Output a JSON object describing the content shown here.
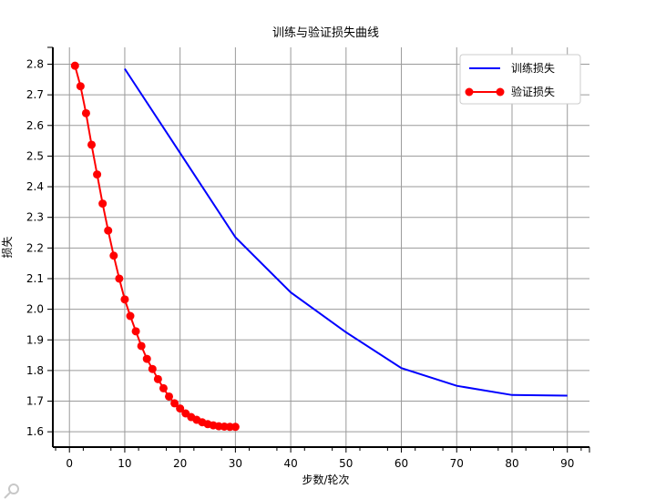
{
  "chart_data": {
    "type": "line",
    "title": "训练与验证损失曲线",
    "xlabel": "步数/轮次",
    "ylabel": "损失",
    "xlim": [
      -3,
      94
    ],
    "ylim": [
      1.55,
      2.855
    ],
    "xticks": [
      0,
      10,
      20,
      30,
      40,
      50,
      60,
      70,
      80,
      90
    ],
    "yticks": [
      1.6,
      1.7,
      1.8,
      1.9,
      2.0,
      2.1,
      2.2,
      2.3,
      2.4,
      2.5,
      2.6,
      2.7,
      2.8
    ],
    "grid": true,
    "legend_position": "top-right",
    "series": [
      {
        "name": "训练损失",
        "color": "#0000ff",
        "marker": "none",
        "x": [
          10,
          20,
          30,
          40,
          50,
          60,
          70,
          80,
          90
        ],
        "y": [
          2.785,
          2.51,
          2.235,
          2.055,
          1.925,
          1.808,
          1.75,
          1.72,
          1.718
        ]
      },
      {
        "name": "验证损失",
        "color": "#ff0000",
        "marker": "circle",
        "x": [
          1,
          2,
          3,
          4,
          5,
          6,
          7,
          8,
          9,
          10,
          11,
          12,
          13,
          14,
          15,
          16,
          17,
          18,
          19,
          20,
          21,
          22,
          23,
          24,
          25,
          26,
          27,
          28,
          29,
          30
        ],
        "y": [
          2.795,
          2.728,
          2.64,
          2.537,
          2.44,
          2.345,
          2.257,
          2.175,
          2.1,
          2.032,
          1.978,
          1.928,
          1.88,
          1.838,
          1.805,
          1.772,
          1.742,
          1.715,
          1.693,
          1.676,
          1.66,
          1.648,
          1.639,
          1.631,
          1.625,
          1.621,
          1.618,
          1.617,
          1.616,
          1.616
        ]
      }
    ]
  },
  "icons": {
    "corner": "zoom-icon"
  }
}
